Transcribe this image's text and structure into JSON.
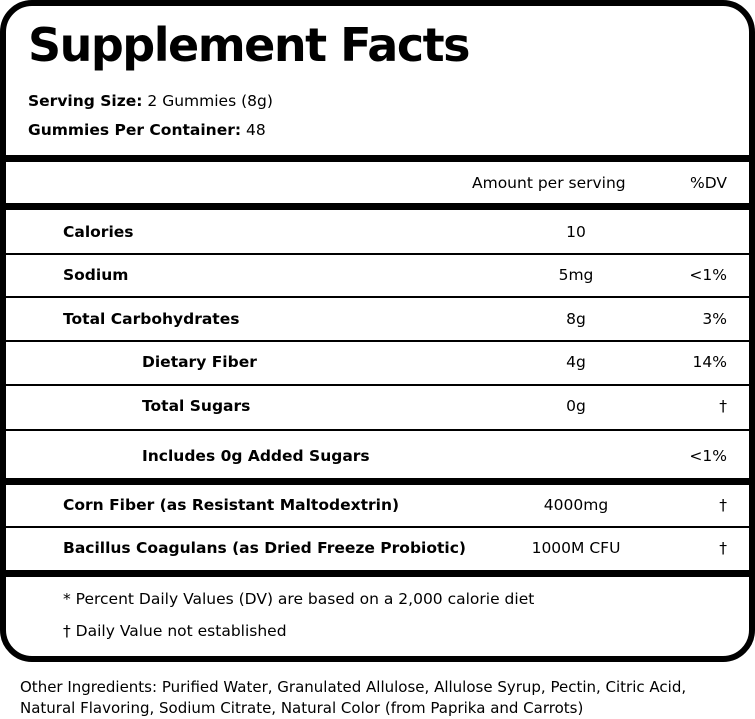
{
  "title": "Supplement Facts",
  "serving_size": {
    "label": "Serving Size:",
    "value": "2 Gummies (8g)"
  },
  "per_container": {
    "label": "Gummies Per Container:",
    "value": "48"
  },
  "header": {
    "amount": "Amount per serving",
    "dv": "%DV"
  },
  "nutrients": [
    {
      "name": "Calories",
      "amount": "10",
      "dv": ""
    },
    {
      "name": "Sodium",
      "amount": "5mg",
      "dv": "<1%"
    },
    {
      "name": "Total Carbohydrates",
      "amount": "8g",
      "dv": "3%"
    },
    {
      "name": "Dietary Fiber",
      "amount": "4g",
      "dv": "14%"
    },
    {
      "name": "Total Sugars",
      "amount": "0g",
      "dv": "†"
    },
    {
      "name": "Includes 0g Added Sugars",
      "amount": "",
      "dv": "<1%"
    }
  ],
  "ingredients": [
    {
      "name": "Corn Fiber (as Resistant Maltodextrin)",
      "amount": "4000mg",
      "dv": "†"
    },
    {
      "name": "Bacillus Coagulans (as Dried Freeze Probiotic)",
      "amount": "1000M CFU",
      "dv": "†"
    }
  ],
  "footnotes": [
    "* Percent Daily Values (DV) are based on a 2,000 calorie diet",
    "† Daily Value not established"
  ],
  "other_ingredients": "Other Ingredients: Purified Water, Granulated Allulose, Allulose Syrup, Pectin, Citric Acid, Natural Flavoring, Sodium Citrate, Natural Color (from Paprika and Carrots)"
}
